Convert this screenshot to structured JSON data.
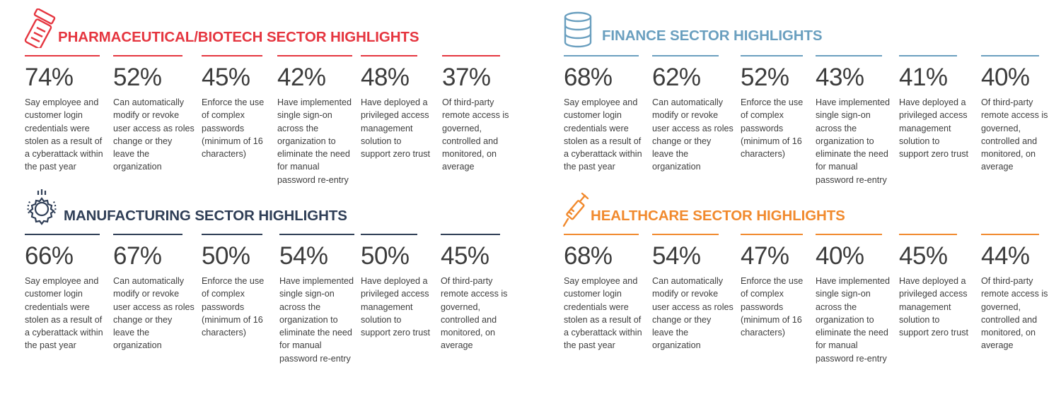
{
  "sectors": [
    {
      "title": "PHARMACEUTICAL/BIOTECH SECTOR HIGHLIGHTS",
      "icon": "pill-bottle-icon",
      "color": "#e5353f",
      "stats": [
        {
          "value": "74%",
          "lines": [
            "Say employee and",
            "customer login",
            "credentials were",
            "stolen as a result of",
            "a cyberattack within",
            "the past year"
          ]
        },
        {
          "value": "52%",
          "lines": [
            "Can automatically",
            "modify or revoke",
            "user access as roles",
            "change or they",
            "leave the",
            "organization"
          ]
        },
        {
          "value": "45%",
          "lines": [
            "Enforce the use",
            "of complex",
            "passwords",
            "(minimum of 16",
            "characters)"
          ]
        },
        {
          "value": "42%",
          "lines": [
            "Have implemented",
            "single sign-on",
            "across the",
            "organization to",
            "eliminate the need",
            "for manual",
            "password re-entry"
          ]
        },
        {
          "value": "48%",
          "lines": [
            "Have deployed a",
            "privileged access",
            "management",
            "solution to",
            "support zero trust"
          ]
        },
        {
          "value": "37%",
          "lines": [
            "Of third-party",
            "remote access is",
            "governed,",
            "controlled and",
            "monitored, on",
            "average"
          ]
        }
      ]
    },
    {
      "title": "FINANCE SECTOR HIGHLIGHTS",
      "icon": "database-icon",
      "color": "#6a9fbf",
      "stats": [
        {
          "value": "68%",
          "lines": [
            "Say employee and",
            "customer login",
            "credentials were",
            "stolen as a result of",
            "a cyberattack within",
            "the past year"
          ]
        },
        {
          "value": "62%",
          "lines": [
            "Can automatically",
            "modify or revoke",
            "user access as roles",
            "change or they",
            "leave the",
            "organization"
          ]
        },
        {
          "value": "52%",
          "lines": [
            "Enforce the use",
            "of complex",
            "passwords",
            "(minimum of 16",
            "characters)"
          ]
        },
        {
          "value": "43%",
          "lines": [
            "Have implemented",
            "single sign-on",
            "across the",
            "organization to",
            "eliminate the need",
            "for manual",
            "password re-entry"
          ]
        },
        {
          "value": "41%",
          "lines": [
            "Have deployed a",
            "privileged access",
            "management",
            "solution to",
            "support zero trust"
          ]
        },
        {
          "value": "40%",
          "lines": [
            "Of third-party",
            "remote access is",
            "governed,",
            "controlled and",
            "monitored, on",
            "average"
          ]
        }
      ]
    },
    {
      "title": "MANUFACTURING SECTOR HIGHLIGHTS",
      "icon": "gear-icon",
      "color": "#2f3e56",
      "stats": [
        {
          "value": "66%",
          "lines": [
            "Say employee and",
            "customer login",
            "credentials were",
            "stolen as a result of",
            "a cyberattack within",
            "the past year"
          ]
        },
        {
          "value": "67%",
          "lines": [
            "Can automatically",
            "modify or revoke",
            "user access as roles",
            "change or they",
            "leave the",
            "organization"
          ]
        },
        {
          "value": "50%",
          "lines": [
            "Enforce the use",
            "of complex",
            "passwords",
            "(minimum of 16",
            "characters)"
          ]
        },
        {
          "value": "54%",
          "lines": [
            "Have implemented",
            "single sign-on",
            "across the",
            "organization to",
            "eliminate the need",
            "for manual",
            "password re-entry"
          ]
        },
        {
          "value": "50%",
          "lines": [
            "Have deployed a",
            "privileged access",
            "management",
            "solution to",
            "support zero trust"
          ]
        },
        {
          "value": "45%",
          "lines": [
            "Of third-party",
            "remote access is",
            "governed,",
            "controlled and",
            "monitored, on",
            "average"
          ]
        }
      ]
    },
    {
      "title": "HEALTHCARE SECTOR HIGHLIGHTS",
      "icon": "syringe-icon",
      "color": "#f18a2e",
      "stats": [
        {
          "value": "68%",
          "lines": [
            "Say employee and",
            "customer login",
            "credentials were",
            "stolen as a result of",
            "a cyberattack within",
            "the past year"
          ]
        },
        {
          "value": "54%",
          "lines": [
            "Can automatically",
            "modify or revoke",
            "user access as roles",
            "change or they",
            "leave the",
            "organization"
          ]
        },
        {
          "value": "47%",
          "lines": [
            "Enforce the use",
            "of complex",
            "passwords",
            "(minimum of 16",
            "characters)"
          ]
        },
        {
          "value": "40%",
          "lines": [
            "Have implemented",
            "single sign-on",
            "across the",
            "organization to",
            "eliminate the need",
            "for manual",
            "password re-entry"
          ]
        },
        {
          "value": "45%",
          "lines": [
            "Have deployed a",
            "privileged access",
            "management",
            "solution to",
            "support zero trust"
          ]
        },
        {
          "value": "44%",
          "lines": [
            "Of third-party",
            "remote access is",
            "governed,",
            "controlled and",
            "monitored, on",
            "average"
          ]
        }
      ]
    }
  ]
}
